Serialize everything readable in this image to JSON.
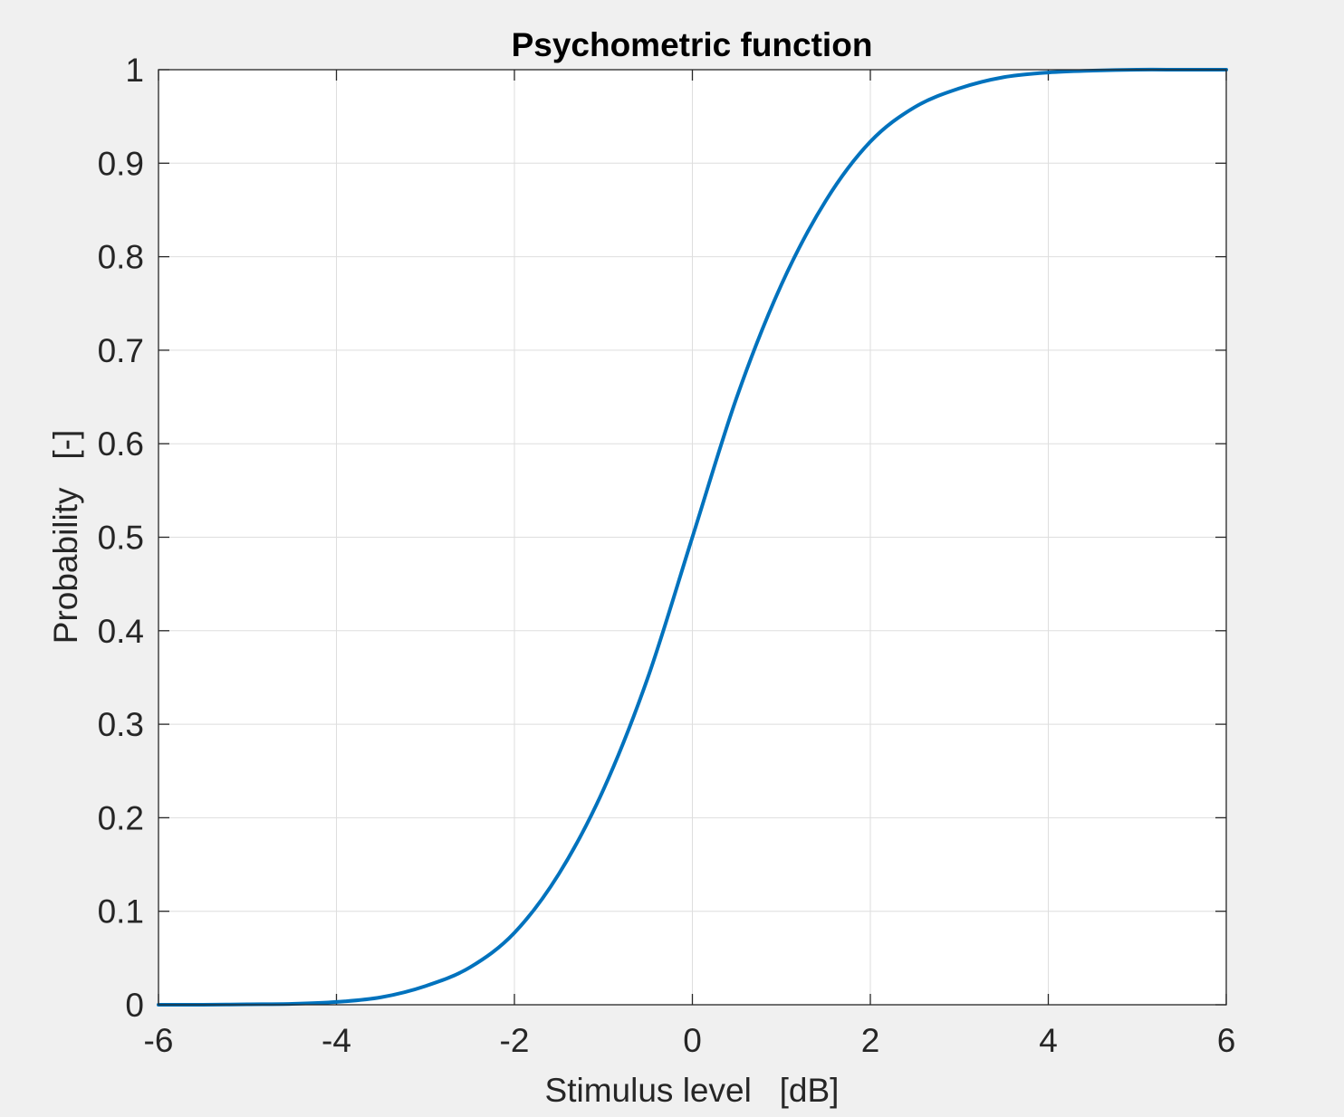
{
  "chart_data": {
    "type": "line",
    "title": "Psychometric function",
    "xlabel": "Stimulus level   [dB]",
    "ylabel": "Probability   [-]",
    "xlim": [
      -6,
      6
    ],
    "ylim": [
      0,
      1
    ],
    "xticks": [
      -6,
      -4,
      -2,
      0,
      2,
      4,
      6
    ],
    "yticks": [
      0,
      0.1,
      0.2,
      0.3,
      0.4,
      0.5,
      0.6,
      0.7,
      0.8,
      0.9,
      1
    ],
    "xtick_labels": [
      "-6",
      "-4",
      "-2",
      "0",
      "2",
      "4",
      "6"
    ],
    "ytick_labels": [
      "0",
      "0.1",
      "0.2",
      "0.3",
      "0.4",
      "0.5",
      "0.6",
      "0.7",
      "0.8",
      "0.9",
      "1"
    ],
    "grid": true,
    "series": [
      {
        "color": "#0072bd",
        "x": [
          -6,
          -5.5,
          -5,
          -4.5,
          -4,
          -3.5,
          -3,
          -2.5,
          -2,
          -1.5,
          -1,
          -0.5,
          0,
          0.5,
          1,
          1.5,
          2,
          2.5,
          3,
          3.5,
          4,
          4.5,
          5,
          5.5,
          6
        ],
        "y": [
          0.0,
          0.0,
          0.0005,
          0.001,
          0.003,
          0.008,
          0.02,
          0.04,
          0.077,
          0.14,
          0.23,
          0.35,
          0.5,
          0.65,
          0.77,
          0.86,
          0.923,
          0.96,
          0.98,
          0.992,
          0.997,
          0.999,
          1.0,
          1.0,
          1.0
        ]
      }
    ]
  }
}
